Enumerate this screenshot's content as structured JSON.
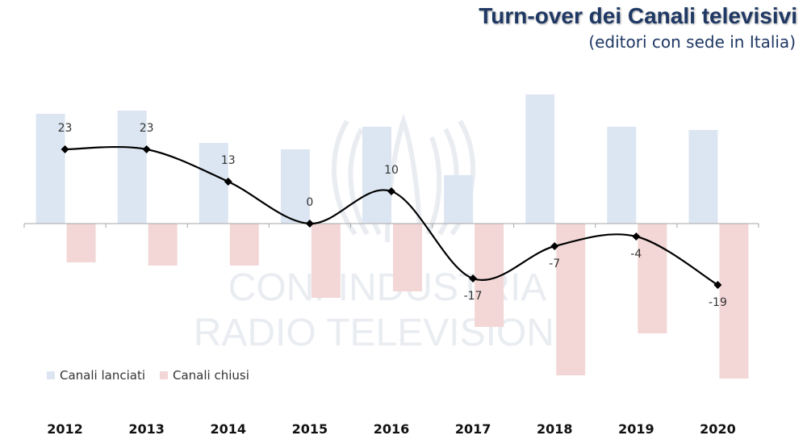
{
  "header": {
    "title": "Turn-over dei Canali televisivi",
    "subtitle": "(editori con sede in Italia)"
  },
  "watermark": {
    "line1": "CONFINDUSTRIA",
    "line2": "RADIO TELEVISIONI"
  },
  "colors": {
    "launched": "#dce6f2",
    "closed": "#f2d7d6",
    "line": "#000000",
    "axis": "#a6a6a6",
    "watermark": "#e9ecf1"
  },
  "chart_data": {
    "type": "bar",
    "categories": [
      "2012",
      "2013",
      "2014",
      "2015",
      "2016",
      "2017",
      "2018",
      "2019",
      "2020"
    ],
    "series": [
      {
        "name": "Canali lanciati",
        "type": "bar",
        "values": [
          34,
          35,
          25,
          23,
          30,
          15,
          40,
          30,
          29
        ]
      },
      {
        "name": "Canali chiusi",
        "type": "bar",
        "values": [
          -12,
          -13,
          -13,
          -23,
          -21,
          -32,
          -47,
          -34,
          -48
        ]
      },
      {
        "name": "",
        "type": "line",
        "values": [
          23,
          23,
          13,
          0,
          10,
          -17,
          -7,
          -4,
          -19
        ]
      }
    ],
    "data_labels": [
      "23",
      "23",
      "13",
      "0",
      "10",
      "-17",
      "-7",
      "-4",
      "-19"
    ],
    "ylim": [
      -50,
      40
    ],
    "legend_position": "bottom-left",
    "grid": false,
    "xlabel": "",
    "ylabel": ""
  }
}
